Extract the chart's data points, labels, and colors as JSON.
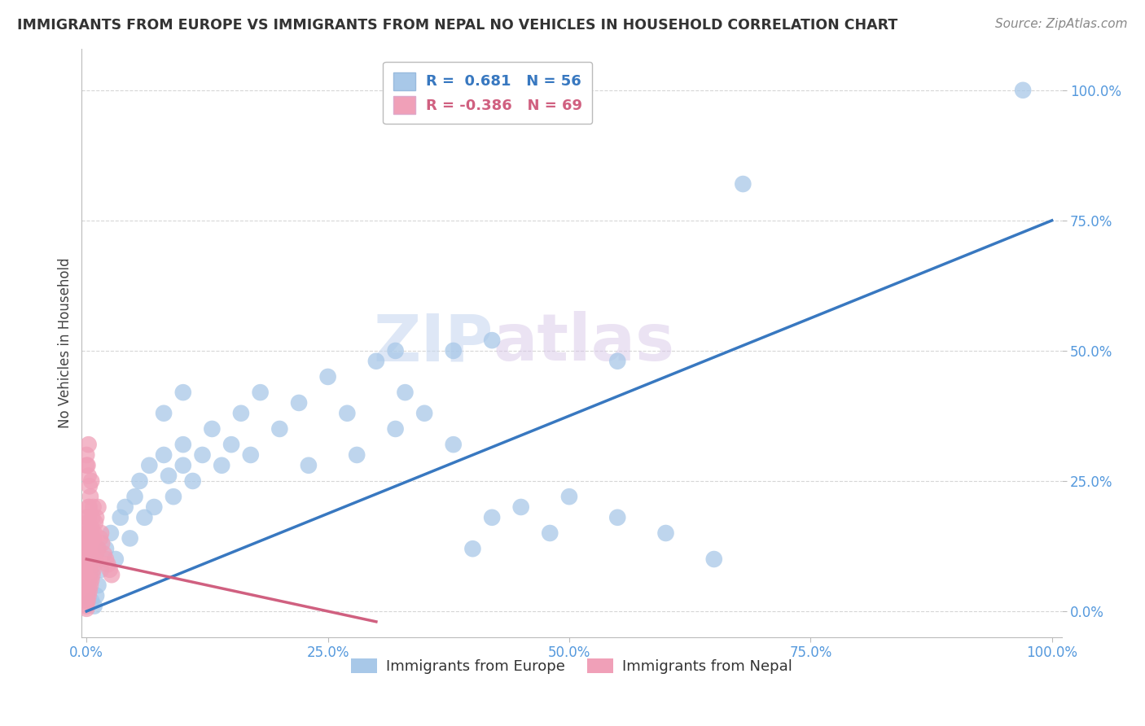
{
  "title": "IMMIGRANTS FROM EUROPE VS IMMIGRANTS FROM NEPAL NO VEHICLES IN HOUSEHOLD CORRELATION CHART",
  "source": "Source: ZipAtlas.com",
  "ylabel": "No Vehicles in Household",
  "legend_europe": "Immigrants from Europe",
  "legend_nepal": "Immigrants from Nepal",
  "R_europe": 0.681,
  "N_europe": 56,
  "R_nepal": -0.386,
  "N_nepal": 69,
  "blue_color": "#A8C8E8",
  "pink_color": "#F0A0B8",
  "blue_line_color": "#3878C0",
  "pink_line_color": "#D06080",
  "watermark_zip": "ZIP",
  "watermark_atlas": "atlas",
  "background_color": "#FFFFFF",
  "grid_color": "#CCCCCC",
  "tick_color": "#5599DD",
  "title_color": "#333333",
  "source_color": "#888888",
  "eu_line_x0": 0.0,
  "eu_line_y0": 0.0,
  "eu_line_x1": 1.0,
  "eu_line_y1": 0.75,
  "np_line_x0": 0.0,
  "np_line_y0": 0.1,
  "np_line_x1": 0.3,
  "np_line_y1": -0.02,
  "xlim_min": -0.005,
  "xlim_max": 1.01,
  "ylim_min": -0.05,
  "ylim_max": 1.08,
  "europe_points": [
    [
      0.005,
      0.02
    ],
    [
      0.008,
      0.01
    ],
    [
      0.01,
      0.03
    ],
    [
      0.012,
      0.05
    ],
    [
      0.015,
      0.08
    ],
    [
      0.02,
      0.12
    ],
    [
      0.025,
      0.15
    ],
    [
      0.03,
      0.1
    ],
    [
      0.035,
      0.18
    ],
    [
      0.04,
      0.2
    ],
    [
      0.045,
      0.14
    ],
    [
      0.05,
      0.22
    ],
    [
      0.055,
      0.25
    ],
    [
      0.06,
      0.18
    ],
    [
      0.065,
      0.28
    ],
    [
      0.07,
      0.2
    ],
    [
      0.08,
      0.3
    ],
    [
      0.085,
      0.26
    ],
    [
      0.09,
      0.22
    ],
    [
      0.1,
      0.28
    ],
    [
      0.1,
      0.32
    ],
    [
      0.11,
      0.25
    ],
    [
      0.12,
      0.3
    ],
    [
      0.13,
      0.35
    ],
    [
      0.14,
      0.28
    ],
    [
      0.15,
      0.32
    ],
    [
      0.16,
      0.38
    ],
    [
      0.17,
      0.3
    ],
    [
      0.18,
      0.42
    ],
    [
      0.2,
      0.35
    ],
    [
      0.22,
      0.4
    ],
    [
      0.23,
      0.28
    ],
    [
      0.25,
      0.45
    ],
    [
      0.27,
      0.38
    ],
    [
      0.28,
      0.3
    ],
    [
      0.3,
      0.48
    ],
    [
      0.32,
      0.35
    ],
    [
      0.33,
      0.42
    ],
    [
      0.35,
      0.38
    ],
    [
      0.38,
      0.32
    ],
    [
      0.4,
      0.12
    ],
    [
      0.42,
      0.18
    ],
    [
      0.45,
      0.2
    ],
    [
      0.48,
      0.15
    ],
    [
      0.5,
      0.22
    ],
    [
      0.55,
      0.18
    ],
    [
      0.6,
      0.15
    ],
    [
      0.65,
      0.1
    ],
    [
      0.38,
      0.5
    ],
    [
      0.42,
      0.52
    ],
    [
      0.32,
      0.5
    ],
    [
      0.55,
      0.48
    ],
    [
      0.68,
      0.82
    ],
    [
      0.97,
      1.0
    ],
    [
      0.1,
      0.42
    ],
    [
      0.08,
      0.38
    ]
  ],
  "nepal_points": [
    [
      0.0,
      0.005
    ],
    [
      0.0,
      0.01
    ],
    [
      0.0,
      0.02
    ],
    [
      0.0,
      0.03
    ],
    [
      0.0,
      0.04
    ],
    [
      0.0,
      0.05
    ],
    [
      0.0,
      0.06
    ],
    [
      0.0,
      0.07
    ],
    [
      0.0,
      0.08
    ],
    [
      0.0,
      0.09
    ],
    [
      0.0,
      0.1
    ],
    [
      0.0,
      0.12
    ],
    [
      0.0,
      0.13
    ],
    [
      0.0,
      0.15
    ],
    [
      0.0,
      0.16
    ],
    [
      0.0,
      0.18
    ],
    [
      0.001,
      0.02
    ],
    [
      0.001,
      0.05
    ],
    [
      0.001,
      0.08
    ],
    [
      0.001,
      0.12
    ],
    [
      0.001,
      0.14
    ],
    [
      0.001,
      0.17
    ],
    [
      0.002,
      0.03
    ],
    [
      0.002,
      0.06
    ],
    [
      0.002,
      0.09
    ],
    [
      0.002,
      0.13
    ],
    [
      0.002,
      0.18
    ],
    [
      0.002,
      0.2
    ],
    [
      0.003,
      0.04
    ],
    [
      0.003,
      0.07
    ],
    [
      0.003,
      0.11
    ],
    [
      0.003,
      0.15
    ],
    [
      0.003,
      0.2
    ],
    [
      0.004,
      0.05
    ],
    [
      0.004,
      0.09
    ],
    [
      0.004,
      0.14
    ],
    [
      0.004,
      0.22
    ],
    [
      0.005,
      0.06
    ],
    [
      0.005,
      0.1
    ],
    [
      0.005,
      0.16
    ],
    [
      0.005,
      0.25
    ],
    [
      0.006,
      0.07
    ],
    [
      0.006,
      0.12
    ],
    [
      0.006,
      0.18
    ],
    [
      0.007,
      0.08
    ],
    [
      0.007,
      0.14
    ],
    [
      0.007,
      0.2
    ],
    [
      0.008,
      0.09
    ],
    [
      0.008,
      0.15
    ],
    [
      0.009,
      0.1
    ],
    [
      0.009,
      0.17
    ],
    [
      0.01,
      0.11
    ],
    [
      0.01,
      0.18
    ],
    [
      0.012,
      0.12
    ],
    [
      0.012,
      0.2
    ],
    [
      0.014,
      0.14
    ],
    [
      0.015,
      0.15
    ],
    [
      0.016,
      0.13
    ],
    [
      0.018,
      0.11
    ],
    [
      0.02,
      0.1
    ],
    [
      0.022,
      0.09
    ],
    [
      0.024,
      0.08
    ],
    [
      0.026,
      0.07
    ],
    [
      0.0,
      0.28
    ],
    [
      0.001,
      0.28
    ],
    [
      0.002,
      0.26
    ],
    [
      0.003,
      0.24
    ],
    [
      0.0,
      0.3
    ],
    [
      0.002,
      0.32
    ]
  ]
}
